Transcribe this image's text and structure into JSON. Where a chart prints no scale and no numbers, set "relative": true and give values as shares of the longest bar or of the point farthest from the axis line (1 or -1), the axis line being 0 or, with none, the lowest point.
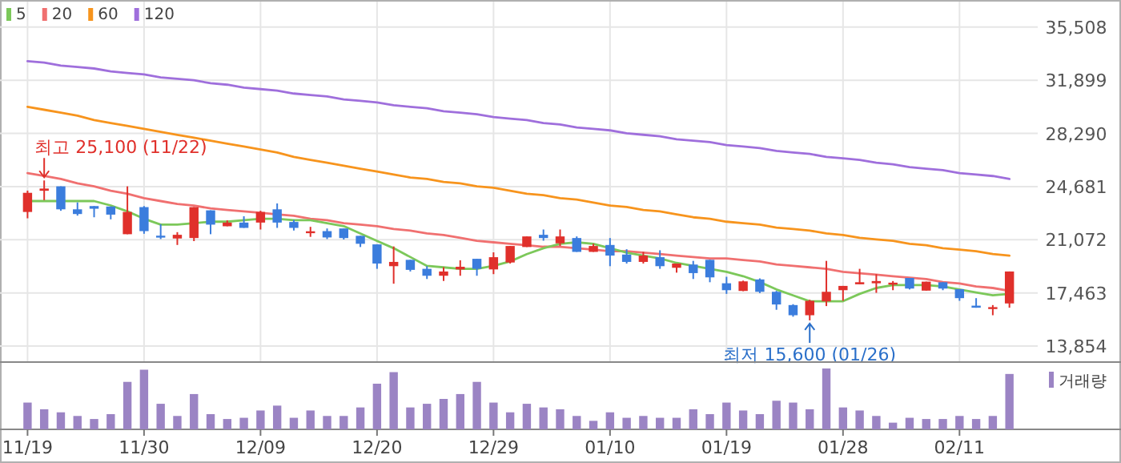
{
  "chart_data": [
    {
      "type": "candlestick",
      "ylim": [
        12770,
        37350
      ],
      "yticks": [
        {
          "value": 13854,
          "label": "13,854"
        },
        {
          "value": 17463,
          "label": "17,463"
        },
        {
          "value": 21072,
          "label": "21,072"
        },
        {
          "value": 24681,
          "label": "24,681"
        },
        {
          "value": 28290,
          "label": "28,290"
        },
        {
          "value": 31899,
          "label": "31,899"
        },
        {
          "value": 35508,
          "label": "35,508"
        }
      ],
      "grid": true,
      "legend": "top left",
      "tick_labels": "y",
      "ohlc": [
        [
          22960,
          24410,
          22530,
          24260
        ],
        [
          24400,
          25100,
          23760,
          24550
        ],
        [
          24700,
          24700,
          23040,
          23140
        ],
        [
          23140,
          23610,
          22710,
          22820
        ],
        [
          23360,
          23360,
          22600,
          23180
        ],
        [
          23330,
          23330,
          22460,
          22780
        ],
        [
          21450,
          24700,
          21450,
          22960
        ],
        [
          23290,
          23360,
          21480,
          21660
        ],
        [
          21350,
          22130,
          21120,
          21300
        ],
        [
          21160,
          21590,
          20720,
          21410
        ],
        [
          21190,
          23290,
          20980,
          23290
        ],
        [
          23070,
          23070,
          21450,
          22100
        ],
        [
          21990,
          22390,
          21990,
          22240
        ],
        [
          22240,
          22670,
          21880,
          21880
        ],
        [
          22240,
          23040,
          21770,
          22960
        ],
        [
          23140,
          23540,
          21880,
          22240
        ],
        [
          22280,
          22420,
          21700,
          21880
        ],
        [
          21590,
          21950,
          21270,
          21650
        ],
        [
          21660,
          21840,
          21120,
          21230
        ],
        [
          21840,
          21840,
          21090,
          21190
        ],
        [
          21340,
          21340,
          20580,
          20800
        ],
        [
          20760,
          20760,
          19100,
          19460
        ],
        [
          19280,
          20620,
          18090,
          19570
        ],
        [
          19710,
          19710,
          18920,
          19030
        ],
        [
          19100,
          19280,
          18410,
          18630
        ],
        [
          18630,
          19210,
          18270,
          18920
        ],
        [
          19060,
          19680,
          18630,
          19240
        ],
        [
          19780,
          19780,
          18630,
          19100
        ],
        [
          19060,
          20220,
          18740,
          19890
        ],
        [
          19530,
          20650,
          19460,
          20650
        ],
        [
          20580,
          21300,
          20580,
          21300
        ],
        [
          21410,
          21770,
          21010,
          21190
        ],
        [
          20830,
          21770,
          20650,
          21300
        ],
        [
          21190,
          21300,
          20250,
          20250
        ],
        [
          20250,
          20800,
          20250,
          20650
        ],
        [
          20720,
          21190,
          19280,
          20000
        ],
        [
          20070,
          20430,
          19460,
          19570
        ],
        [
          19570,
          20250,
          19460,
          20000
        ],
        [
          19890,
          20360,
          19100,
          19280
        ],
        [
          19170,
          19460,
          18840,
          19460
        ],
        [
          19390,
          19640,
          18410,
          18810
        ],
        [
          19710,
          19710,
          18190,
          18520
        ],
        [
          18120,
          18560,
          17400,
          17650
        ],
        [
          17600,
          18300,
          17580,
          18250
        ],
        [
          18380,
          18450,
          17450,
          17540
        ],
        [
          17540,
          17600,
          16320,
          16680
        ],
        [
          16640,
          16700,
          15850,
          15950
        ],
        [
          15950,
          17000,
          15600,
          16930
        ],
        [
          16890,
          19640,
          16570,
          17540
        ],
        [
          17650,
          17940,
          16930,
          17940
        ],
        [
          18050,
          19100,
          18050,
          18190
        ],
        [
          18120,
          18740,
          17470,
          18270
        ],
        [
          18050,
          18270,
          17650,
          18160
        ],
        [
          18480,
          18480,
          17700,
          17760
        ],
        [
          17620,
          18230,
          17620,
          18230
        ],
        [
          18190,
          18190,
          17650,
          17760
        ],
        [
          17720,
          17720,
          16930,
          17110
        ],
        [
          16600,
          17110,
          16460,
          16460
        ],
        [
          16400,
          16640,
          15950,
          16500
        ],
        [
          16750,
          18920,
          16460,
          18920
        ]
      ],
      "colors": [
        "#e0302b",
        "#e0302b",
        "#3b7ddd",
        "#3b7ddd",
        "#3b7ddd",
        "#3b7ddd",
        "#e0302b",
        "#3b7ddd",
        "#3b7ddd",
        "#e0302b",
        "#e0302b",
        "#3b7ddd",
        "#e0302b",
        "#3b7ddd",
        "#e0302b",
        "#3b7ddd",
        "#3b7ddd",
        "#e0302b",
        "#3b7ddd",
        "#3b7ddd",
        "#3b7ddd",
        "#3b7ddd",
        "#e0302b",
        "#3b7ddd",
        "#3b7ddd",
        "#e0302b",
        "#e0302b",
        "#3b7ddd",
        "#e0302b",
        "#e0302b",
        "#e0302b",
        "#3b7ddd",
        "#e0302b",
        "#3b7ddd",
        "#e0302b",
        "#3b7ddd",
        "#3b7ddd",
        "#e0302b",
        "#3b7ddd",
        "#e0302b",
        "#3b7ddd",
        "#3b7ddd",
        "#3b7ddd",
        "#e0302b",
        "#3b7ddd",
        "#3b7ddd",
        "#3b7ddd",
        "#e0302b",
        "#e0302b",
        "#e0302b",
        "#e0302b",
        "#e0302b",
        "#e0302b",
        "#3b7ddd",
        "#e0302b",
        "#3b7ddd",
        "#3b7ddd",
        "#3b7ddd",
        "#e0302b",
        "#e0302b"
      ],
      "series": [
        {
          "type": "line",
          "name": "5",
          "color": "#7cc85a",
          "values": [
            23700,
            23700,
            23700,
            23700,
            23700,
            23400,
            23000,
            22500,
            22100,
            22100,
            22200,
            22300,
            22300,
            22400,
            22500,
            22500,
            22400,
            22400,
            22200,
            22000,
            21500,
            21000,
            20500,
            19900,
            19300,
            19200,
            19100,
            19100,
            19300,
            19600,
            20100,
            20500,
            20800,
            20900,
            20800,
            20500,
            20200,
            20000,
            19800,
            19500,
            19300,
            19100,
            18900,
            18600,
            18200,
            17700,
            17300,
            16900,
            16900,
            16900,
            17400,
            17800,
            18000,
            18000,
            18000,
            17900,
            17700,
            17500,
            17300,
            17400
          ]
        },
        {
          "type": "line",
          "name": "20",
          "color": "#f07070",
          "values": [
            25600,
            25400,
            25200,
            24900,
            24700,
            24400,
            24200,
            23900,
            23700,
            23500,
            23400,
            23200,
            23100,
            23000,
            22900,
            22800,
            22700,
            22500,
            22400,
            22200,
            22100,
            22000,
            21800,
            21700,
            21500,
            21400,
            21200,
            21000,
            20900,
            20800,
            20700,
            20600,
            20600,
            20500,
            20400,
            20300,
            20300,
            20200,
            20100,
            20000,
            19900,
            19800,
            19800,
            19700,
            19600,
            19400,
            19300,
            19200,
            19100,
            18900,
            18800,
            18700,
            18600,
            18500,
            18400,
            18200,
            18100,
            17900,
            17800,
            17600
          ]
        },
        {
          "type": "line",
          "name": "60",
          "color": "#f7941d",
          "values": [
            30100,
            29900,
            29700,
            29500,
            29200,
            29000,
            28800,
            28600,
            28400,
            28200,
            28000,
            27800,
            27600,
            27400,
            27200,
            27000,
            26700,
            26500,
            26300,
            26100,
            25900,
            25700,
            25500,
            25300,
            25200,
            25000,
            24900,
            24700,
            24600,
            24400,
            24200,
            24100,
            23900,
            23800,
            23600,
            23400,
            23300,
            23100,
            23000,
            22800,
            22600,
            22500,
            22300,
            22200,
            22100,
            21900,
            21800,
            21700,
            21500,
            21400,
            21200,
            21100,
            21000,
            20800,
            20700,
            20500,
            20400,
            20300,
            20100,
            20000
          ]
        },
        {
          "type": "line",
          "name": "120",
          "color": "#9f6fdc",
          "values": [
            33200,
            33100,
            32900,
            32800,
            32700,
            32500,
            32400,
            32300,
            32100,
            32000,
            31900,
            31700,
            31600,
            31400,
            31300,
            31200,
            31000,
            30900,
            30800,
            30600,
            30500,
            30400,
            30200,
            30100,
            30000,
            29800,
            29700,
            29600,
            29400,
            29300,
            29200,
            29000,
            28900,
            28700,
            28600,
            28500,
            28300,
            28200,
            28100,
            27900,
            27800,
            27700,
            27500,
            27400,
            27300,
            27100,
            27000,
            26900,
            26700,
            26600,
            26500,
            26300,
            26200,
            26000,
            25900,
            25800,
            25600,
            25500,
            25400,
            25200
          ]
        }
      ],
      "annotations": [
        "최고 25,100 (11/22)",
        "최저 15,600 (01/26)"
      ]
    },
    {
      "type": "bar",
      "relative": true,
      "legend": "top right",
      "tick_labels": "x",
      "categories": [
        "11/19",
        null,
        null,
        null,
        null,
        null,
        null,
        "11/30",
        null,
        null,
        null,
        null,
        null,
        null,
        "12/09",
        null,
        null,
        null,
        null,
        null,
        null,
        "12/20",
        null,
        null,
        null,
        null,
        null,
        null,
        "12/29",
        null,
        null,
        null,
        null,
        null,
        null,
        "01/10",
        null,
        null,
        null,
        null,
        null,
        null,
        "01/19",
        null,
        null,
        null,
        null,
        null,
        null,
        "01/28",
        null,
        null,
        null,
        null,
        null,
        null,
        "02/11",
        null,
        null,
        null
      ],
      "series": [
        {
          "name": "거래량",
          "color": "#9b84c4",
          "values": [
            0.44,
            0.33,
            0.28,
            0.22,
            0.17,
            0.25,
            0.78,
            0.98,
            0.42,
            0.22,
            0.58,
            0.25,
            0.17,
            0.19,
            0.31,
            0.39,
            0.19,
            0.31,
            0.22,
            0.22,
            0.36,
            0.75,
            0.94,
            0.36,
            0.42,
            0.5,
            0.58,
            0.78,
            0.44,
            0.28,
            0.42,
            0.36,
            0.33,
            0.22,
            0.14,
            0.28,
            0.19,
            0.22,
            0.19,
            0.19,
            0.33,
            0.25,
            0.44,
            0.31,
            0.25,
            0.47,
            0.44,
            0.33,
            1,
            0.36,
            0.31,
            0.22,
            0.11,
            0.19,
            0.17,
            0.17,
            0.22,
            0.17,
            0.22,
            0.91
          ]
        }
      ]
    }
  ]
}
